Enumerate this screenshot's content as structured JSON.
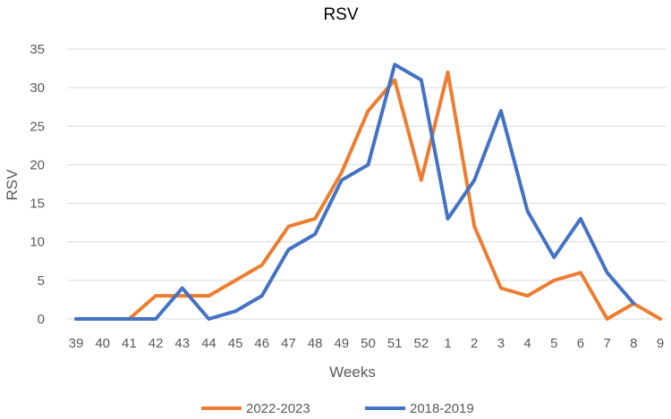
{
  "chart_data": {
    "type": "line",
    "title": "RSV",
    "xlabel": "Weeks",
    "ylabel": "RSV",
    "ylim": [
      0,
      35
    ],
    "yticks": [
      0,
      5,
      10,
      15,
      20,
      25,
      30,
      35
    ],
    "grid": true,
    "legend_position": "bottom",
    "categories": [
      "39",
      "40",
      "41",
      "42",
      "43",
      "44",
      "45",
      "46",
      "47",
      "48",
      "49",
      "50",
      "51",
      "52",
      "1",
      "2",
      "3",
      "4",
      "5",
      "6",
      "7",
      "8",
      "9"
    ],
    "series": [
      {
        "name": "2022-2023",
        "color": "#ED7D31",
        "values": [
          0,
          0,
          0,
          3,
          3,
          3,
          5,
          7,
          12,
          13,
          19,
          27,
          31,
          18,
          32,
          12,
          4,
          3,
          5,
          6,
          0,
          2,
          0
        ]
      },
      {
        "name": "2018-2019",
        "color": "#4472C4",
        "values": [
          0,
          0,
          0,
          0,
          4,
          0,
          1,
          3,
          9,
          11,
          18,
          20,
          33,
          31,
          13,
          18,
          27,
          14,
          8,
          13,
          6,
          2,
          null
        ]
      }
    ]
  }
}
